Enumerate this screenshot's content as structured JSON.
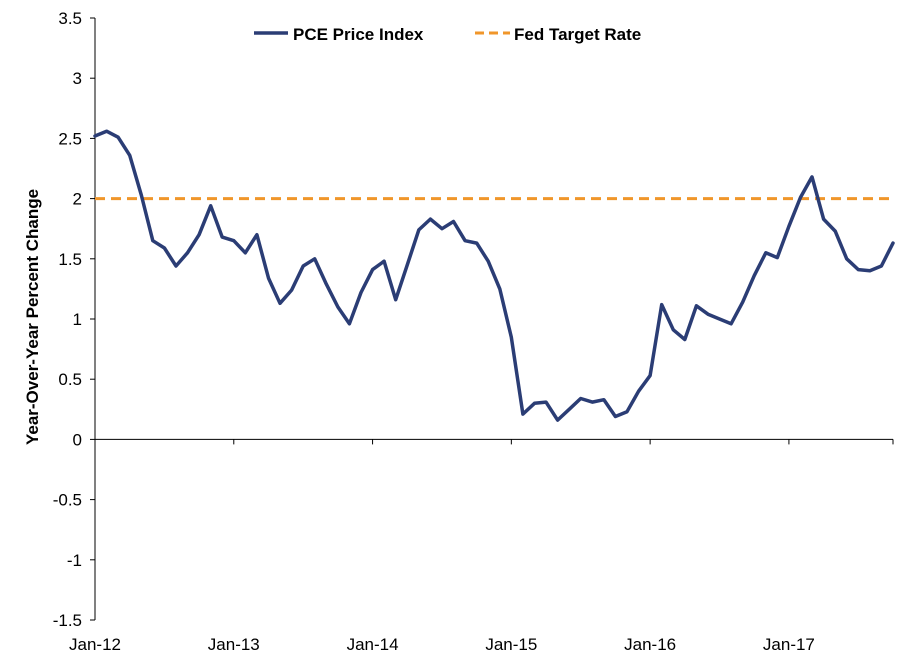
{
  "chart_data": {
    "type": "line",
    "title": "",
    "xlabel": "",
    "ylabel": "Year-Over-Year Percent Change",
    "ylim": [
      -1.5,
      3.5
    ],
    "y_ticks": [
      "3.5",
      "3",
      "2.5",
      "2",
      "1.5",
      "1",
      "0.5",
      "0",
      "-0.5",
      "-1",
      "-1.5"
    ],
    "x_tick_labels": [
      "Jan-12",
      "Jan-13",
      "Jan-14",
      "Jan-15",
      "Jan-16",
      "Jan-17"
    ],
    "grid": false,
    "legend_position": "top-center",
    "x_start": "2012-01",
    "x_end": "2017-10",
    "series": [
      {
        "name": "PCE Price Index",
        "color": "#2b3d75",
        "style": "solid",
        "x": [
          "2012-01",
          "2012-02",
          "2012-03",
          "2012-04",
          "2012-05",
          "2012-06",
          "2012-07",
          "2012-08",
          "2012-09",
          "2012-10",
          "2012-11",
          "2012-12",
          "2013-01",
          "2013-02",
          "2013-03",
          "2013-04",
          "2013-05",
          "2013-06",
          "2013-07",
          "2013-08",
          "2013-09",
          "2013-10",
          "2013-11",
          "2013-12",
          "2014-01",
          "2014-02",
          "2014-03",
          "2014-04",
          "2014-05",
          "2014-06",
          "2014-07",
          "2014-08",
          "2014-09",
          "2014-10",
          "2014-11",
          "2014-12",
          "2015-01",
          "2015-02",
          "2015-03",
          "2015-04",
          "2015-05",
          "2015-06",
          "2015-07",
          "2015-08",
          "2015-09",
          "2015-10",
          "2015-11",
          "2015-12",
          "2016-01",
          "2016-02",
          "2016-03",
          "2016-04",
          "2016-05",
          "2016-06",
          "2016-07",
          "2016-08",
          "2016-09",
          "2016-10",
          "2016-11",
          "2016-12",
          "2017-01",
          "2017-02",
          "2017-03",
          "2017-04",
          "2017-05",
          "2017-06",
          "2017-07",
          "2017-08",
          "2017-09",
          "2017-10"
        ],
        "values": [
          2.52,
          2.56,
          2.51,
          2.36,
          2.03,
          1.65,
          1.59,
          1.44,
          1.55,
          1.7,
          1.94,
          1.68,
          1.65,
          1.55,
          1.7,
          1.34,
          1.13,
          1.24,
          1.44,
          1.5,
          1.29,
          1.1,
          0.96,
          1.22,
          1.41,
          1.48,
          1.16,
          1.45,
          1.74,
          1.83,
          1.75,
          1.81,
          1.65,
          1.63,
          1.48,
          1.25,
          0.85,
          0.21,
          0.3,
          0.31,
          0.16,
          0.25,
          0.34,
          0.31,
          0.33,
          0.19,
          0.23,
          0.4,
          0.53,
          1.12,
          0.91,
          0.83,
          1.11,
          1.04,
          1.0,
          0.96,
          1.14,
          1.36,
          1.55,
          1.51,
          1.77,
          2.01,
          2.18,
          1.83,
          1.73,
          1.5,
          1.41,
          1.4,
          1.44,
          1.63
        ]
      },
      {
        "name": "Fed Target Rate",
        "color": "#f0962a",
        "style": "dashed",
        "x": [
          "2012-01",
          "2017-10"
        ],
        "values": [
          2.0,
          2.0
        ]
      }
    ]
  }
}
